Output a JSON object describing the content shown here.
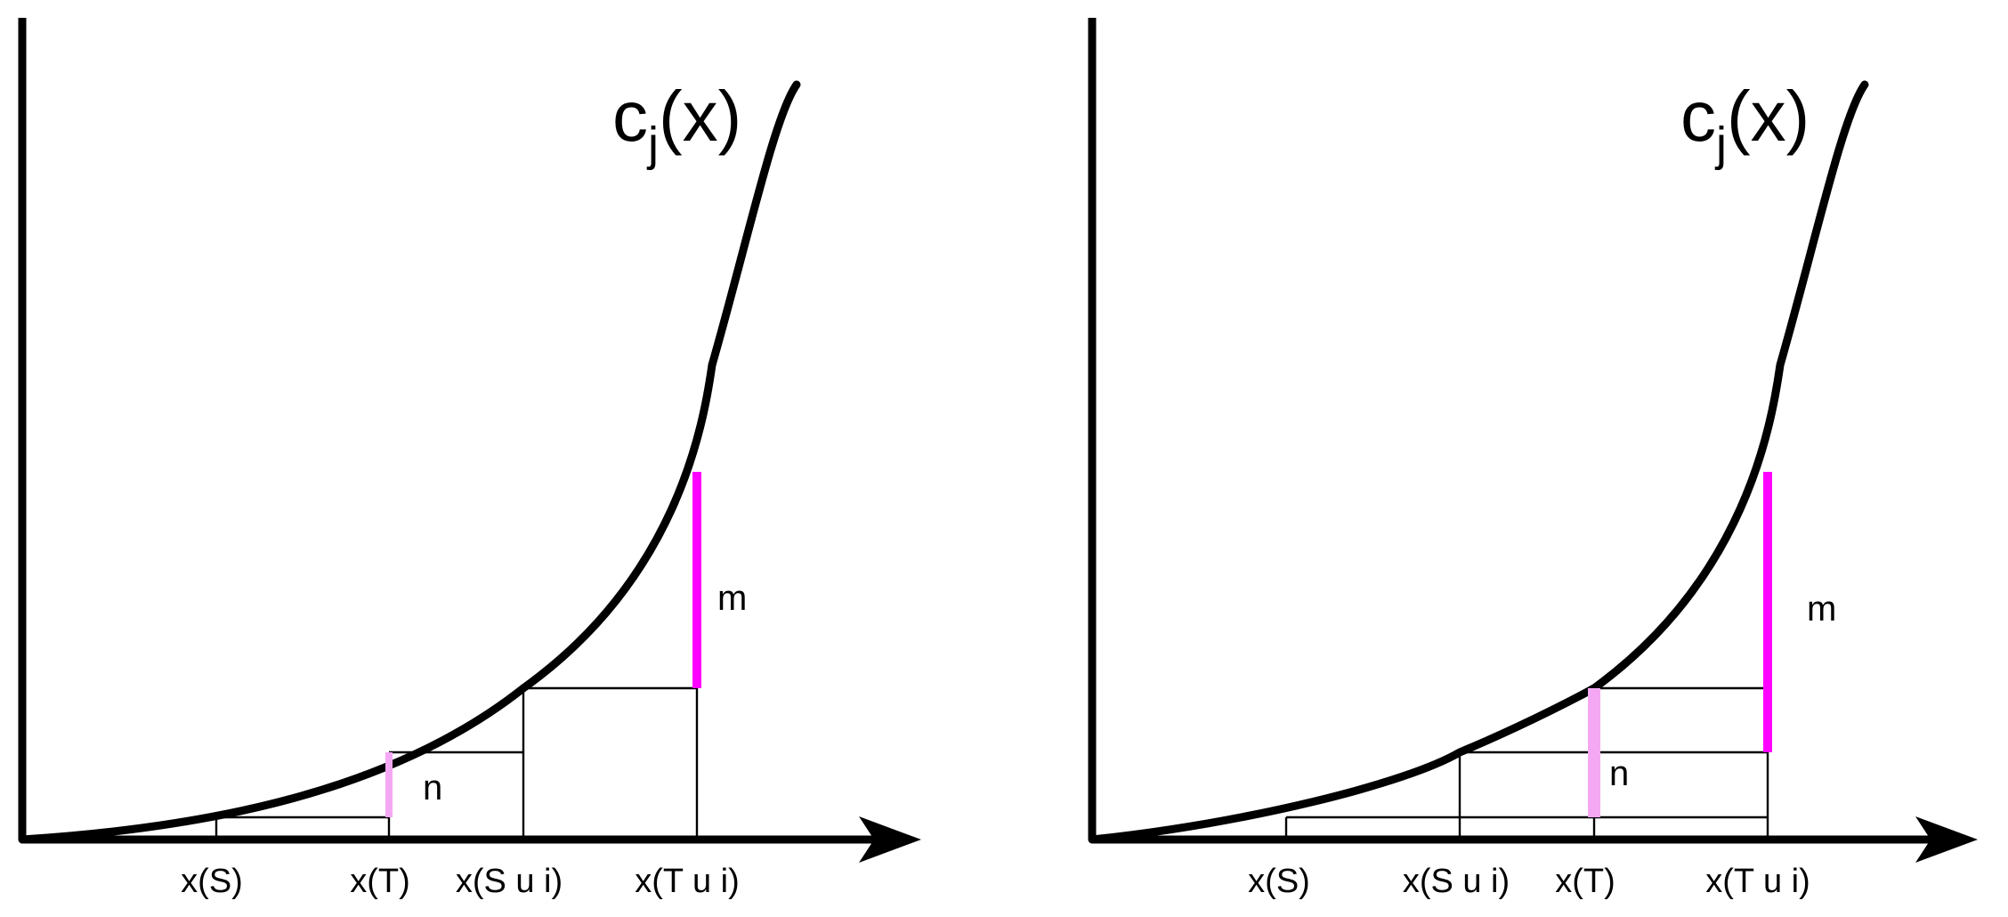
{
  "colors": {
    "m_segment": "#ff00ff",
    "n_segment": "#f4a8f4",
    "ink": "#000000"
  },
  "panels": [
    {
      "function_label": {
        "base": "c",
        "subscript": "j",
        "argument": "(x)"
      },
      "tick_labels": [
        "x(S)",
        "x(T)",
        "x(S u i)",
        "x(T u i)"
      ],
      "segment_labels": {
        "n": "n",
        "m": "m"
      }
    },
    {
      "function_label": {
        "base": "c",
        "subscript": "j",
        "argument": "(x)"
      },
      "tick_labels": [
        "x(S)",
        "x(S u i)",
        "x(T)",
        "x(T u i)"
      ],
      "segment_labels": {
        "n": "n",
        "m": "m"
      }
    }
  ]
}
